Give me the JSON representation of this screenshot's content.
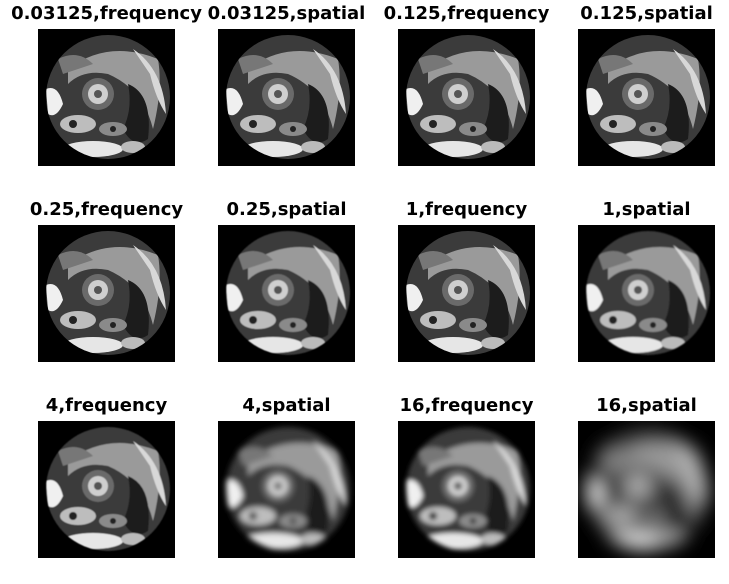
{
  "panels": [
    {
      "title": "0.03125,frequency",
      "blur": 0.2
    },
    {
      "title": "0.03125,spatial",
      "blur": 0.2
    },
    {
      "title": "0.125,frequency",
      "blur": 0.2
    },
    {
      "title": "0.125,spatial",
      "blur": 0.3
    },
    {
      "title": "0.25,frequency",
      "blur": 0.2
    },
    {
      "title": "0.25,spatial",
      "blur": 0.4
    },
    {
      "title": "1,frequency",
      "blur": 0.3
    },
    {
      "title": "1,spatial",
      "blur": 0.8
    },
    {
      "title": "4,frequency",
      "blur": 0.5
    },
    {
      "title": "4,spatial",
      "blur": 3
    },
    {
      "title": "16,frequency",
      "blur": 2.5
    },
    {
      "title": "16,spatial",
      "blur": 9
    }
  ]
}
